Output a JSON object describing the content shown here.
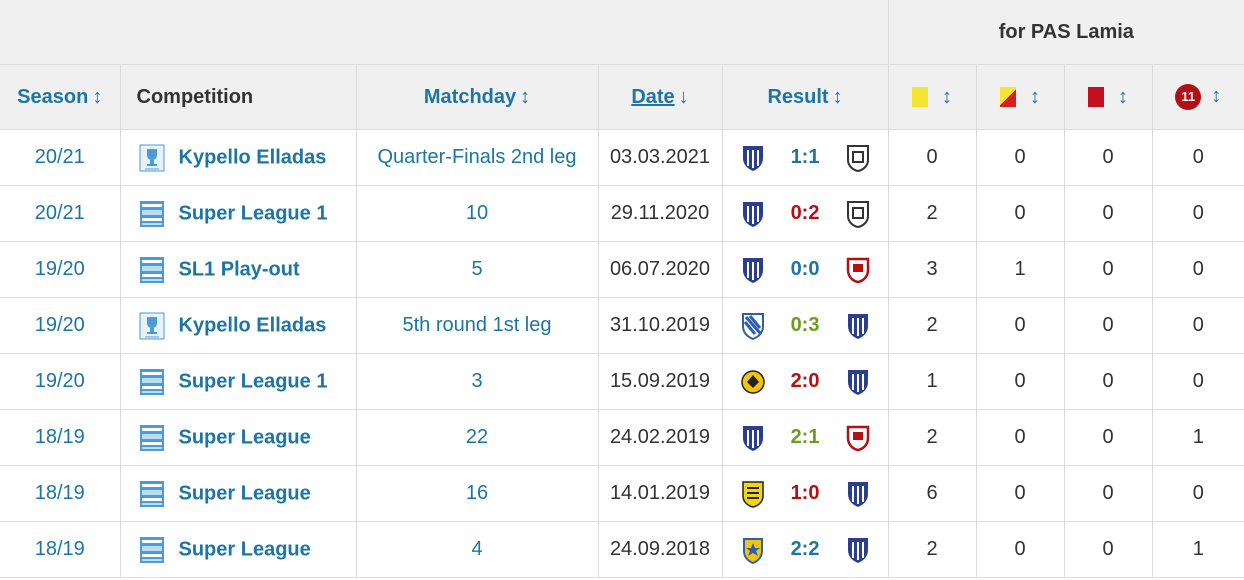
{
  "header": {
    "for_label": "for PAS Lamia",
    "season": "Season",
    "competition": "Competition",
    "matchday": "Matchday",
    "date": "Date",
    "result": "Result",
    "sort_arrow": "↕",
    "sort_desc_arrow": "↓",
    "penalty_badge": "11"
  },
  "colors": {
    "link": "#1d75a3",
    "draw": "#1d75a3",
    "win": "#6a9e1f",
    "loss": "#b31015",
    "header_bg": "#f0f0f0"
  },
  "rows": [
    {
      "season": "20/21",
      "competition": "Kypello Elladas",
      "comp_icon": "cup-icon",
      "matchday": "Quarter-Finals 2nd leg",
      "date": "03.03.2021",
      "home_icon": "lamia-crest-icon",
      "score": "1:1",
      "score_type": "draw",
      "away_icon": "paok-crest-icon",
      "yellow": "0",
      "yellow_red": "0",
      "red": "0",
      "penalty": "0"
    },
    {
      "season": "20/21",
      "competition": "Super League 1",
      "comp_icon": "league-icon",
      "matchday": "10",
      "date": "29.11.2020",
      "home_icon": "lamia-crest-icon",
      "score": "0:2",
      "score_type": "loss",
      "away_icon": "paok-crest-icon",
      "yellow": "2",
      "yellow_red": "0",
      "red": "0",
      "penalty": "0"
    },
    {
      "season": "19/20",
      "competition": "SL1 Play-out",
      "comp_icon": "league-icon",
      "matchday": "5",
      "date": "06.07.2020",
      "home_icon": "lamia-crest-icon",
      "score": "0:0",
      "score_type": "draw",
      "away_icon": "red-white-crest-icon",
      "yellow": "3",
      "yellow_red": "1",
      "red": "0",
      "penalty": "0"
    },
    {
      "season": "19/20",
      "competition": "Kypello Elladas",
      "comp_icon": "cup-icon",
      "matchday": "5th round 1st leg",
      "date": "31.10.2019",
      "home_icon": "blue-white-crest-icon",
      "score": "0:3",
      "score_type": "win",
      "away_icon": "lamia-crest-icon",
      "yellow": "2",
      "yellow_red": "0",
      "red": "0",
      "penalty": "0"
    },
    {
      "season": "19/20",
      "competition": "Super League 1",
      "comp_icon": "league-icon",
      "matchday": "3",
      "date": "15.09.2019",
      "home_icon": "aek-crest-icon",
      "score": "2:0",
      "score_type": "loss",
      "away_icon": "lamia-crest-icon",
      "yellow": "1",
      "yellow_red": "0",
      "red": "0",
      "penalty": "0"
    },
    {
      "season": "18/19",
      "competition": "Super League",
      "comp_icon": "league-icon",
      "matchday": "22",
      "date": "24.02.2019",
      "home_icon": "lamia-crest-icon",
      "score": "2:1",
      "score_type": "win",
      "away_icon": "red-white-crest-icon",
      "yellow": "2",
      "yellow_red": "0",
      "red": "0",
      "penalty": "1"
    },
    {
      "season": "18/19",
      "competition": "Super League",
      "comp_icon": "league-icon",
      "matchday": "16",
      "date": "14.01.2019",
      "home_icon": "aris-crest-icon",
      "score": "1:0",
      "score_type": "loss",
      "away_icon": "lamia-crest-icon",
      "yellow": "6",
      "yellow_red": "0",
      "red": "0",
      "penalty": "0"
    },
    {
      "season": "18/19",
      "competition": "Super League",
      "comp_icon": "league-icon",
      "matchday": "4",
      "date": "24.09.2018",
      "home_icon": "asteras-crest-icon",
      "score": "2:2",
      "score_type": "draw",
      "away_icon": "lamia-crest-icon",
      "yellow": "2",
      "yellow_red": "0",
      "red": "0",
      "penalty": "1"
    }
  ]
}
